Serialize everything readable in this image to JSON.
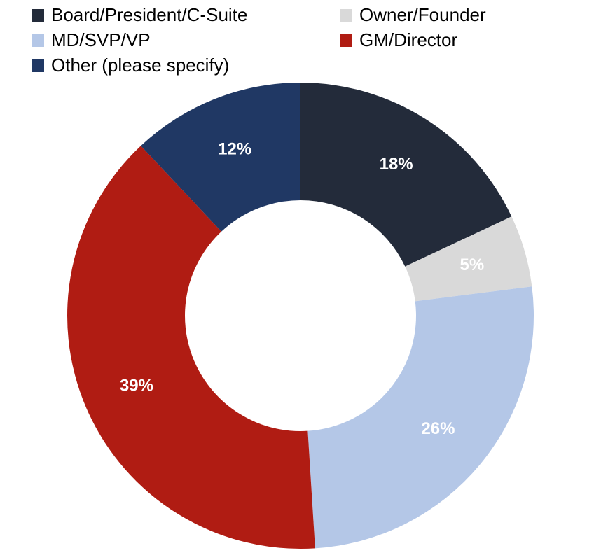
{
  "chart_data": {
    "type": "donut",
    "categories": [
      "Board/President/C-Suite",
      "Owner/Founder",
      "MD/SVP/VP",
      "GM/Director",
      "Other (please specify)"
    ],
    "values": [
      18,
      5,
      26,
      39,
      12
    ],
    "value_labels": [
      "18%",
      "5%",
      "26%",
      "39%",
      "12%"
    ],
    "colors": [
      "#232b3a",
      "#d9d9d9",
      "#b4c7e7",
      "#b01c13",
      "#203864"
    ],
    "legend": "top"
  }
}
